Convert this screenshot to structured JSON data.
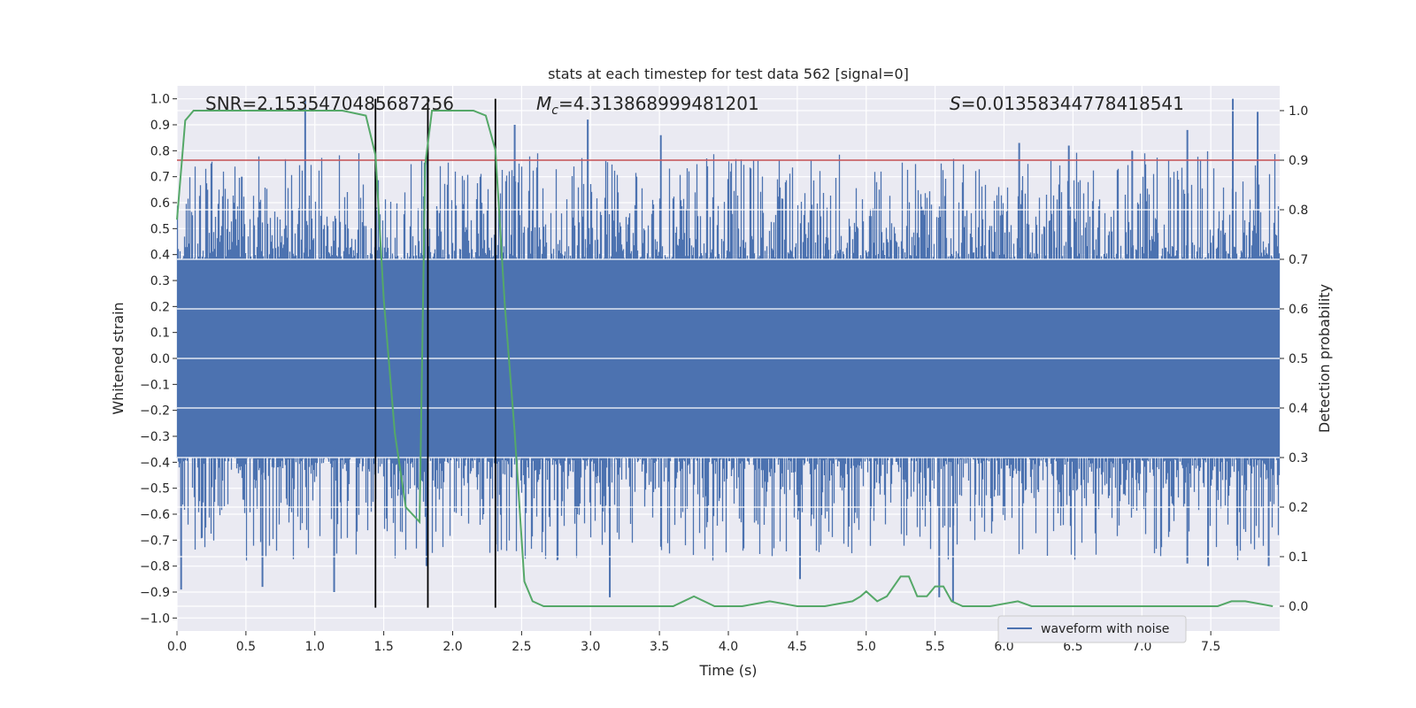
{
  "chart_data": {
    "type": "line",
    "title": "stats at each timestep for test data 562 [signal=0]",
    "xlabel": "Time (s)",
    "ylabel": "Whitened strain",
    "y2label": "Detection probability",
    "xlim": [
      0.0,
      8.0
    ],
    "ylim": [
      -1.05,
      1.05
    ],
    "y2lim": [
      -0.05,
      1.05
    ],
    "x_ticks": [
      "0.0",
      "0.5",
      "1.0",
      "1.5",
      "2.0",
      "2.5",
      "3.0",
      "3.5",
      "4.0",
      "4.5",
      "5.0",
      "5.5",
      "6.0",
      "6.5",
      "7.0",
      "7.5"
    ],
    "y_ticks": [
      "1.0",
      "0.9",
      "0.8",
      "0.7",
      "0.6",
      "0.5",
      "0.4",
      "0.3",
      "0.2",
      "0.1",
      "0.0",
      "−0.1",
      "−0.2",
      "−0.3",
      "−0.4",
      "−0.5",
      "−0.6",
      "−0.7",
      "−0.8",
      "−0.9",
      "−1.0"
    ],
    "y2_ticks": [
      "1.0",
      "0.9",
      "0.8",
      "0.7",
      "0.6",
      "0.5",
      "0.4",
      "0.3",
      "0.2",
      "0.1",
      "0.0"
    ],
    "annotations": {
      "snr": "SNR=2.1535470485687256",
      "mc_symbol": "M",
      "mc_sub": "c",
      "mc_value": "=4.313868999481201",
      "s_symbol": "S",
      "s_value": "=0.01358344778418541"
    },
    "threshold": {
      "y2": 0.9,
      "color": "#c44e52"
    },
    "vertical_lines": [
      1.44,
      1.82,
      2.31
    ],
    "legend": {
      "label": "waveform with noise",
      "placement": "lower-right"
    },
    "series": [
      {
        "name": "waveform with noise",
        "color": "#4c72b0",
        "axis": "left",
        "envelope": {
          "typical_peak": 0.45,
          "core": 0.35
        },
        "spikes": [
          {
            "x": 0.03,
            "y": -0.89
          },
          {
            "x": 0.22,
            "y": 0.65
          },
          {
            "x": 0.47,
            "y": 0.7
          },
          {
            "x": 0.93,
            "y": 1.0
          },
          {
            "x": 0.62,
            "y": -0.88
          },
          {
            "x": 1.14,
            "y": -0.9
          },
          {
            "x": 1.44,
            "y": 0.72
          },
          {
            "x": 1.81,
            "y": -0.8
          },
          {
            "x": 2.45,
            "y": 0.9
          },
          {
            "x": 2.98,
            "y": 0.92
          },
          {
            "x": 3.14,
            "y": -0.92
          },
          {
            "x": 3.51,
            "y": 0.86
          },
          {
            "x": 4.52,
            "y": -0.85
          },
          {
            "x": 5.63,
            "y": -0.94
          },
          {
            "x": 5.53,
            "y": -0.92
          },
          {
            "x": 6.11,
            "y": 0.83
          },
          {
            "x": 6.47,
            "y": 0.82
          },
          {
            "x": 6.93,
            "y": 0.8
          },
          {
            "x": 7.33,
            "y": 0.88
          },
          {
            "x": 7.33,
            "y": -0.79
          },
          {
            "x": 7.66,
            "y": 1.0
          },
          {
            "x": 7.84,
            "y": 0.95
          },
          {
            "x": 7.92,
            "y": -0.8
          },
          {
            "x": 7.48,
            "y": -0.8
          }
        ]
      },
      {
        "name": "detection probability",
        "color": "#55a868",
        "axis": "right",
        "x": [
          0.0,
          0.06,
          0.12,
          0.2,
          0.4,
          0.6,
          0.8,
          1.0,
          1.2,
          1.37,
          1.44,
          1.5,
          1.58,
          1.66,
          1.76,
          1.8,
          1.85,
          1.9,
          2.0,
          2.15,
          2.24,
          2.31,
          2.38,
          2.45,
          2.52,
          2.58,
          2.66,
          2.8,
          3.0,
          3.2,
          3.4,
          3.6,
          3.75,
          3.9,
          4.1,
          4.3,
          4.5,
          4.7,
          4.9,
          4.96,
          5.0,
          5.08,
          5.15,
          5.25,
          5.31,
          5.37,
          5.44,
          5.5,
          5.56,
          5.62,
          5.7,
          5.9,
          6.1,
          6.2,
          6.3,
          6.5,
          6.8,
          7.0,
          7.3,
          7.55,
          7.65,
          7.75,
          7.95
        ],
        "values": [
          0.78,
          0.98,
          1.0,
          1.0,
          1.0,
          1.0,
          1.0,
          1.0,
          1.0,
          0.99,
          0.91,
          0.62,
          0.35,
          0.2,
          0.17,
          0.89,
          1.0,
          1.0,
          1.0,
          1.0,
          0.99,
          0.92,
          0.6,
          0.35,
          0.05,
          0.01,
          0.0,
          0.0,
          0.0,
          0.0,
          0.0,
          0.0,
          0.02,
          0.0,
          0.0,
          0.01,
          0.0,
          0.0,
          0.01,
          0.02,
          0.03,
          0.01,
          0.02,
          0.06,
          0.06,
          0.02,
          0.02,
          0.04,
          0.04,
          0.01,
          0.0,
          0.0,
          0.01,
          0.0,
          0.0,
          0.0,
          0.0,
          0.0,
          0.0,
          0.0,
          0.01,
          0.01,
          0.0
        ]
      }
    ]
  }
}
